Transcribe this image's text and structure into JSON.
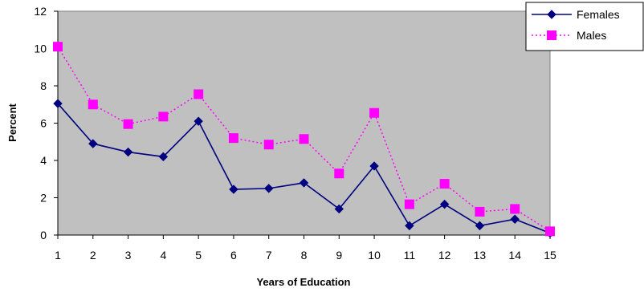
{
  "chart_data": {
    "type": "line",
    "title": "",
    "xlabel": "Years of Education",
    "ylabel": "Percent",
    "categories": [
      "1",
      "2",
      "3",
      "4",
      "5",
      "6",
      "7",
      "8",
      "9",
      "10",
      "11",
      "12",
      "13",
      "14",
      "15"
    ],
    "ylim": [
      0,
      12
    ],
    "yticks": [
      "0",
      "2",
      "4",
      "6",
      "8",
      "10",
      "12"
    ],
    "grid": false,
    "plot_background": "#c0c0c0",
    "legend_position": "top-right",
    "series": [
      {
        "name": "Females",
        "color": "#000080",
        "marker": "diamond",
        "line_style": "solid",
        "values": [
          7.05,
          4.9,
          4.45,
          4.2,
          6.1,
          2.45,
          2.5,
          2.8,
          1.4,
          3.7,
          0.5,
          1.65,
          0.5,
          0.85,
          0.1
        ]
      },
      {
        "name": "Males",
        "color": "#ff00ff",
        "marker": "square",
        "line_style": "dotted",
        "values": [
          10.1,
          7.0,
          5.95,
          6.35,
          7.55,
          5.2,
          4.85,
          5.15,
          3.3,
          6.55,
          1.65,
          2.75,
          1.25,
          1.4,
          0.2
        ]
      }
    ]
  }
}
